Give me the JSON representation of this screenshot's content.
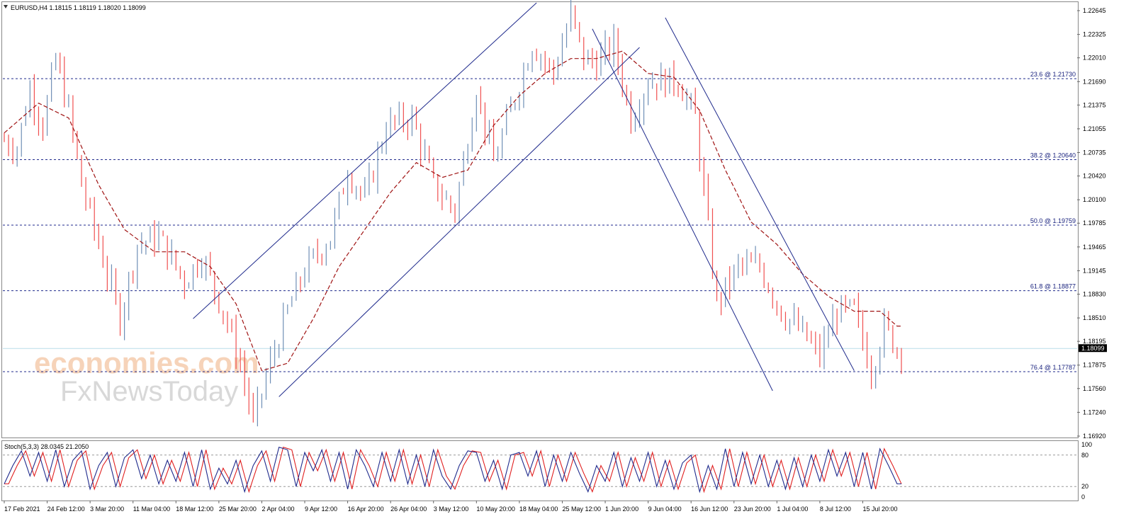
{
  "header": {
    "symbol_info": "EURUSD,H4  1.18115 1.18119 1.18020 1.18099"
  },
  "watermark": {
    "brand_line1": "economies.com",
    "brand_line2": "FxNewsToday"
  },
  "price_axis": {
    "ticks": [
      "1.22645",
      "1.22325",
      "1.22010",
      "1.21690",
      "1.21375",
      "1.21055",
      "1.20735",
      "1.20420",
      "1.20100",
      "1.19785",
      "1.19465",
      "1.19145",
      "1.18830",
      "1.18510",
      "1.18195",
      "1.17875",
      "1.17560",
      "1.17240",
      "1.16920"
    ],
    "current_price_label": "1.18099"
  },
  "time_axis": {
    "labels": [
      "17 Feb 2021",
      "24 Feb 12:00",
      "3 Mar 20:00",
      "11 Mar 04:00",
      "18 Mar 12:00",
      "25 Mar 20:00",
      "2 Apr 04:00",
      "9 Apr 12:00",
      "16 Apr 20:00",
      "26 Apr 04:00",
      "3 May 12:00",
      "10 May 20:00",
      "18 May 04:00",
      "25 May 12:00",
      "1 Jun 20:00",
      "9 Jun 04:00",
      "16 Jun 12:00",
      "23 Jun 20:00",
      "1 Jul 04:00",
      "8 Jul 12:00",
      "15 Jul 20:00"
    ]
  },
  "fib_levels": [
    {
      "label": "23.6 @ 1.21730",
      "value": 1.2173
    },
    {
      "label": "38.2 @ 1.20640",
      "value": 1.2064
    },
    {
      "label": "50.0 @ 1.19759",
      "value": 1.19759
    },
    {
      "label": "61.8 @ 1.18877",
      "value": 1.18877
    },
    {
      "label": "76.4 @ 1.17787",
      "value": 1.17787
    }
  ],
  "stochastic": {
    "label": "Stoch(5,3,3) 28.0345 21.2050",
    "axis_labels": [
      "100",
      "80",
      "20",
      "0"
    ],
    "levels": [
      80,
      20
    ]
  },
  "colors": {
    "up_bar": "#6f8fb6",
    "down_bar": "#f05050",
    "moving_average": "#a01414",
    "trendline": "#1f2a8c",
    "fib_line": "#1f2a8c",
    "current_price_line": "#b9dde8",
    "stoch_main": "#1f2a8c",
    "stoch_signal": "#e02020"
  },
  "chart_data": {
    "type": "candlestick",
    "symbol": "EURUSD",
    "timeframe": "H4",
    "ylim": [
      1.1692,
      1.2275
    ],
    "x_labels": [
      "17 Feb 2021",
      "24 Feb 12:00",
      "3 Mar 20:00",
      "11 Mar 04:00",
      "18 Mar 12:00",
      "25 Mar 20:00",
      "2 Apr 04:00",
      "9 Apr 12:00",
      "16 Apr 20:00",
      "26 Apr 04:00",
      "3 May 12:00",
      "10 May 20:00",
      "18 May 04:00",
      "25 May 12:00",
      "1 Jun 20:00",
      "9 Jun 04:00",
      "16 Jun 12:00",
      "23 Jun 20:00",
      "1 Jul 04:00",
      "8 Jul 12:00",
      "15 Jul 20:00"
    ],
    "close_path": [
      [
        0,
        1.209
      ],
      [
        3,
        1.208
      ],
      [
        6,
        1.216
      ],
      [
        9,
        1.211
      ],
      [
        12,
        1.22
      ],
      [
        15,
        1.213
      ],
      [
        18,
        1.203
      ],
      [
        22,
        1.195
      ],
      [
        27,
        1.185
      ],
      [
        31,
        1.195
      ],
      [
        36,
        1.196
      ],
      [
        42,
        1.19
      ],
      [
        46,
        1.1935
      ],
      [
        51,
        1.186
      ],
      [
        55,
        1.179
      ],
      [
        58,
        1.171
      ],
      [
        62,
        1.179
      ],
      [
        66,
        1.186
      ],
      [
        70,
        1.1915
      ],
      [
        76,
        1.196
      ],
      [
        80,
        1.205
      ],
      [
        84,
        1.201
      ],
      [
        89,
        1.211
      ],
      [
        95,
        1.212
      ],
      [
        100,
        1.203
      ],
      [
        105,
        1.1995
      ],
      [
        110,
        1.216
      ],
      [
        114,
        1.206
      ],
      [
        118,
        1.213
      ],
      [
        123,
        1.222
      ],
      [
        128,
        1.218
      ],
      [
        132,
        1.226
      ],
      [
        135,
        1.22
      ],
      [
        138,
        1.2195
      ],
      [
        142,
        1.222
      ],
      [
        146,
        1.212
      ],
      [
        150,
        1.217
      ],
      [
        154,
        1.217
      ],
      [
        157,
        1.217
      ],
      [
        161,
        1.212
      ],
      [
        166,
        1.187
      ],
      [
        171,
        1.192
      ],
      [
        176,
        1.192
      ],
      [
        181,
        1.186
      ],
      [
        186,
        1.183
      ],
      [
        190,
        1.18
      ],
      [
        194,
        1.186
      ],
      [
        198,
        1.186
      ],
      [
        202,
        1.178
      ],
      [
        205,
        1.184
      ],
      [
        208,
        1.181
      ]
    ],
    "moving_average_path": [
      [
        0,
        1.21
      ],
      [
        8,
        1.214
      ],
      [
        15,
        1.212
      ],
      [
        22,
        1.203
      ],
      [
        28,
        1.197
      ],
      [
        35,
        1.194
      ],
      [
        42,
        1.194
      ],
      [
        48,
        1.192
      ],
      [
        54,
        1.187
      ],
      [
        60,
        1.178
      ],
      [
        66,
        1.179
      ],
      [
        72,
        1.185
      ],
      [
        78,
        1.192
      ],
      [
        84,
        1.197
      ],
      [
        90,
        1.202
      ],
      [
        96,
        1.206
      ],
      [
        102,
        1.204
      ],
      [
        108,
        1.205
      ],
      [
        114,
        1.211
      ],
      [
        120,
        1.215
      ],
      [
        126,
        1.218
      ],
      [
        132,
        1.22
      ],
      [
        138,
        1.22
      ],
      [
        144,
        1.221
      ],
      [
        150,
        1.218
      ],
      [
        156,
        1.2175
      ],
      [
        162,
        1.213
      ],
      [
        168,
        1.205
      ],
      [
        174,
        1.198
      ],
      [
        180,
        1.195
      ],
      [
        186,
        1.191
      ],
      [
        192,
        1.188
      ],
      [
        198,
        1.186
      ],
      [
        204,
        1.186
      ],
      [
        208,
        1.184
      ]
    ],
    "trendlines": [
      {
        "name": "channel-upper",
        "p1": [
          44,
          1.185
        ],
        "p2": [
          124,
          1.2275
        ]
      },
      {
        "name": "channel-lower",
        "p1": [
          64,
          1.1745
        ],
        "p2": [
          148,
          1.2215
        ]
      },
      {
        "name": "downtrend-outer",
        "p1": [
          137,
          1.224
        ],
        "p2": [
          179,
          1.1753
        ]
      },
      {
        "name": "downtrend-inner",
        "p1": [
          154,
          1.2255
        ],
        "p2": [
          198,
          1.178
        ]
      }
    ],
    "current_price": 1.18099,
    "stochastic_path": [
      [
        0,
        25
      ],
      [
        2,
        60
      ],
      [
        4,
        88
      ],
      [
        6,
        40
      ],
      [
        8,
        85
      ],
      [
        10,
        30
      ],
      [
        12,
        90
      ],
      [
        14,
        20
      ],
      [
        16,
        70
      ],
      [
        18,
        88
      ],
      [
        20,
        15
      ],
      [
        22,
        60
      ],
      [
        24,
        85
      ],
      [
        26,
        20
      ],
      [
        28,
        75
      ],
      [
        30,
        90
      ],
      [
        32,
        35
      ],
      [
        34,
        80
      ],
      [
        36,
        25
      ],
      [
        38,
        70
      ],
      [
        40,
        30
      ],
      [
        42,
        85
      ],
      [
        44,
        20
      ],
      [
        46,
        90
      ],
      [
        48,
        15
      ],
      [
        50,
        55
      ],
      [
        52,
        25
      ],
      [
        54,
        70
      ],
      [
        56,
        10
      ],
      [
        58,
        60
      ],
      [
        60,
        88
      ],
      [
        62,
        30
      ],
      [
        64,
        95
      ],
      [
        66,
        90
      ],
      [
        68,
        20
      ],
      [
        70,
        85
      ],
      [
        72,
        50
      ],
      [
        74,
        90
      ],
      [
        76,
        30
      ],
      [
        78,
        85
      ],
      [
        80,
        15
      ],
      [
        82,
        90
      ],
      [
        84,
        60
      ],
      [
        86,
        20
      ],
      [
        88,
        85
      ],
      [
        90,
        30
      ],
      [
        92,
        90
      ],
      [
        94,
        25
      ],
      [
        96,
        80
      ],
      [
        98,
        20
      ],
      [
        100,
        90
      ],
      [
        102,
        40
      ],
      [
        104,
        15
      ],
      [
        106,
        60
      ],
      [
        108,
        88
      ],
      [
        110,
        85
      ],
      [
        112,
        30
      ],
      [
        114,
        70
      ],
      [
        116,
        15
      ],
      [
        118,
        80
      ],
      [
        120,
        85
      ],
      [
        122,
        40
      ],
      [
        124,
        88
      ],
      [
        126,
        20
      ],
      [
        128,
        80
      ],
      [
        130,
        30
      ],
      [
        132,
        85
      ],
      [
        134,
        45
      ],
      [
        136,
        10
      ],
      [
        138,
        60
      ],
      [
        140,
        30
      ],
      [
        142,
        85
      ],
      [
        144,
        20
      ],
      [
        146,
        75
      ],
      [
        148,
        30
      ],
      [
        150,
        85
      ],
      [
        152,
        20
      ],
      [
        154,
        70
      ],
      [
        156,
        15
      ],
      [
        158,
        65
      ],
      [
        160,
        80
      ],
      [
        162,
        10
      ],
      [
        164,
        60
      ],
      [
        166,
        15
      ],
      [
        168,
        92
      ],
      [
        170,
        20
      ],
      [
        172,
        85
      ],
      [
        174,
        25
      ],
      [
        176,
        80
      ],
      [
        178,
        20
      ],
      [
        180,
        70
      ],
      [
        182,
        15
      ],
      [
        184,
        75
      ],
      [
        186,
        20
      ],
      [
        188,
        80
      ],
      [
        190,
        30
      ],
      [
        192,
        90
      ],
      [
        194,
        40
      ],
      [
        196,
        85
      ],
      [
        198,
        20
      ],
      [
        200,
        85
      ],
      [
        202,
        15
      ],
      [
        204,
        92
      ],
      [
        206,
        60
      ],
      [
        208,
        25
      ]
    ]
  }
}
